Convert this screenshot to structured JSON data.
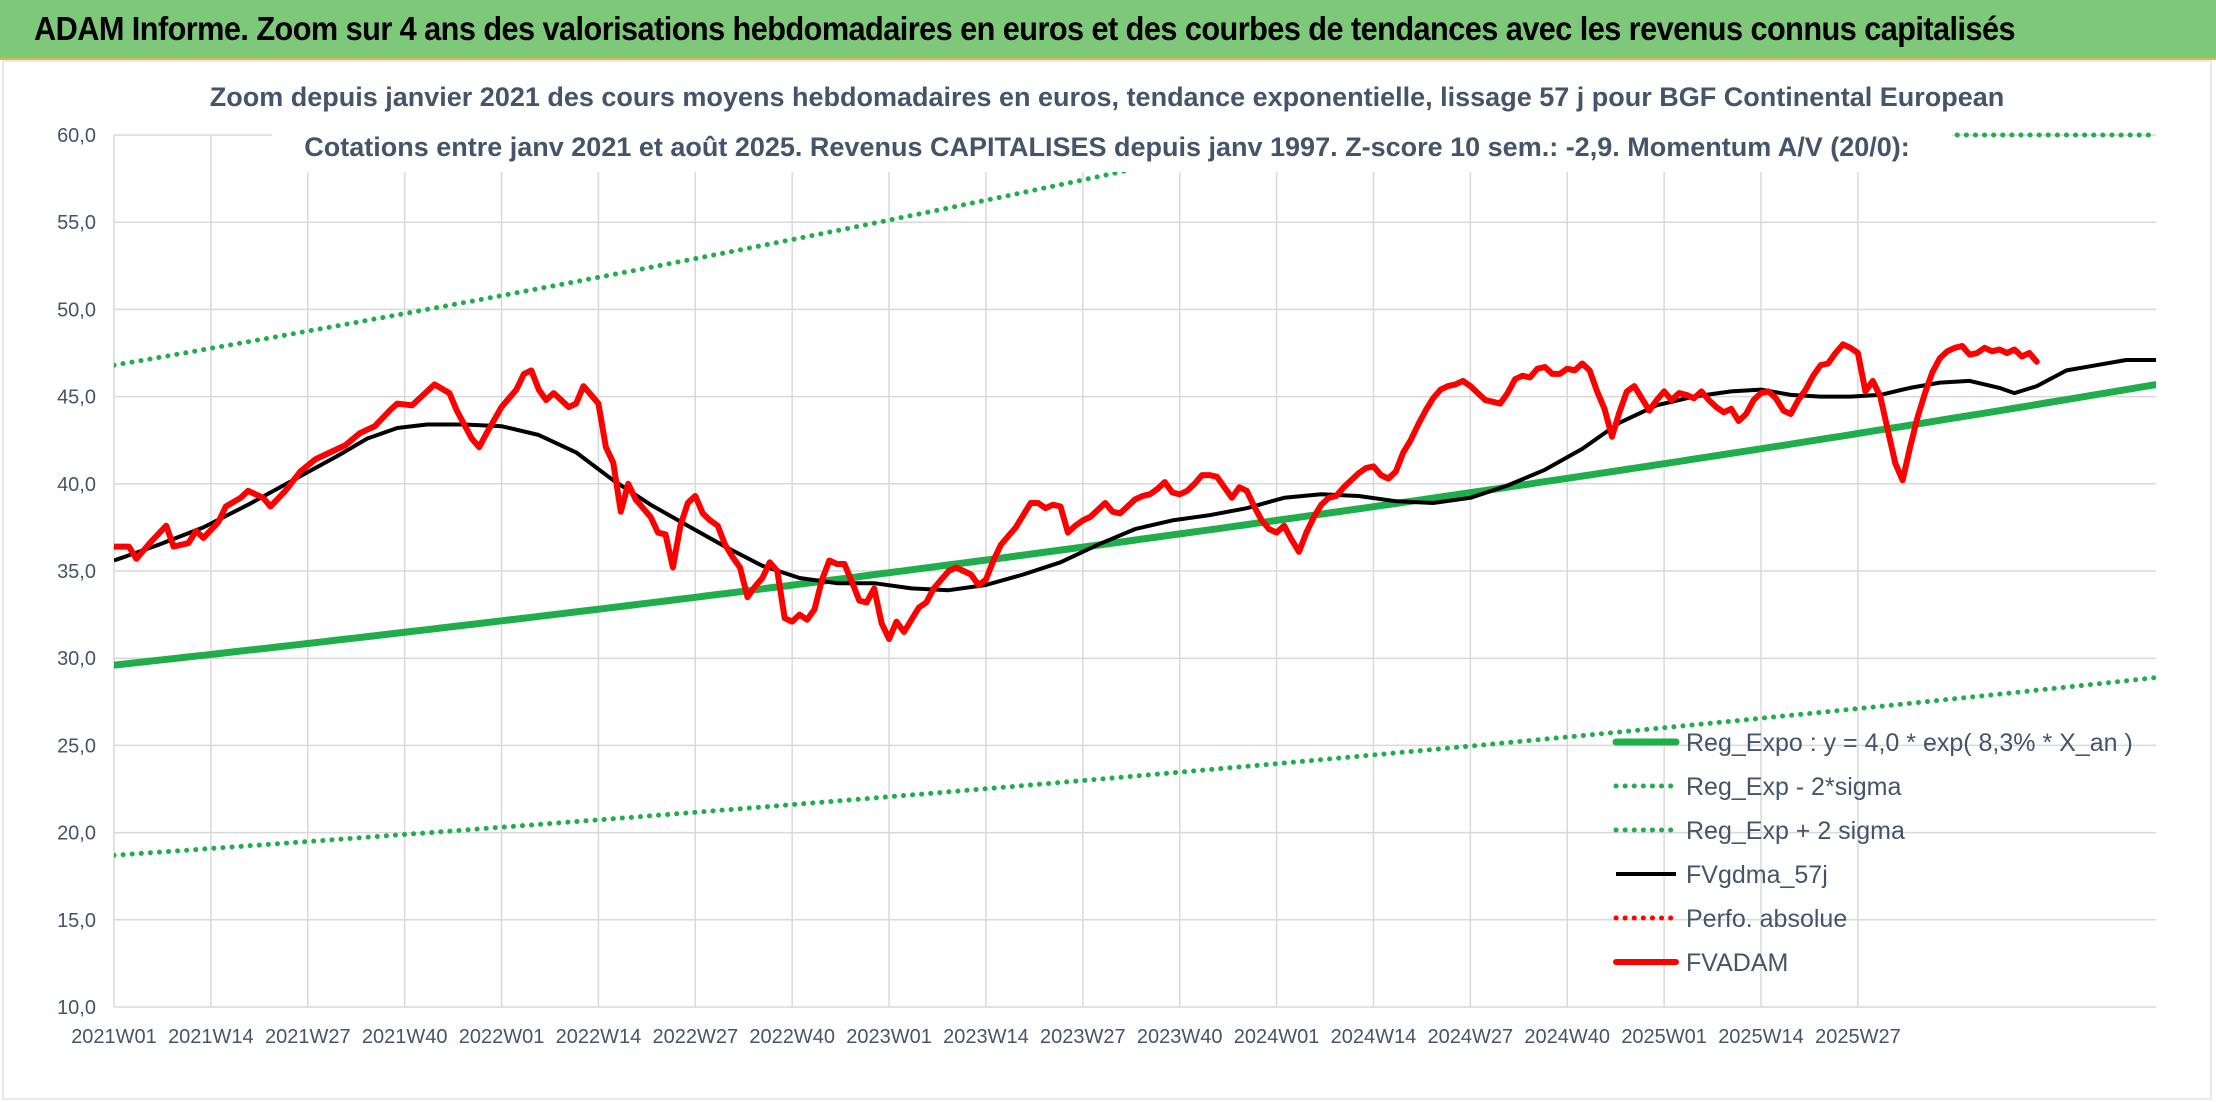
{
  "banner": {
    "text": "ADAM Informe. Zoom sur 4 ans des valorisations hebdomadaires en euros et des courbes de tendances avec les revenus connus capitalisés"
  },
  "colors": {
    "banner_bg": "#7ec87a",
    "trend_green": "#1fae4b",
    "fvgdma_black": "#000000",
    "fvadam_red": "#ff0000",
    "text": "#44546a",
    "grid": "#d9d9d9"
  },
  "chart_data": {
    "type": "line",
    "title": "Zoom depuis janvier 2021 des cours moyens hebdomadaires en euros, tendance exponentielle, lissage 57 j pour BGF Continental European",
    "subtitle": "Cotations entre janv 2021 et août 2025. Revenus CAPITALISES depuis janv 1997. Z-score 10 sem.: -2,9. Momentum A/V (20/0):",
    "ylim": [
      10,
      60
    ],
    "yticks": [
      "10,0",
      "15,0",
      "20,0",
      "25,0",
      "30,0",
      "35,0",
      "40,0",
      "45,0",
      "50,0",
      "55,0",
      "60,0"
    ],
    "x_tick_labels": [
      "2021W01",
      "2021W14",
      "2021W27",
      "2021W40",
      "2022W01",
      "2022W14",
      "2022W27",
      "2022W40",
      "2023W01",
      "2023W14",
      "2023W27",
      "2023W40",
      "2024W01",
      "2024W14",
      "2024W27",
      "2024W40",
      "2025W01",
      "2025W14",
      "2025W27"
    ],
    "grid": true,
    "legend_position": "bottom-right",
    "series": [
      {
        "name": "Reg_Expo : y = 4,0 * exp( 8,3% *  X_an )",
        "style": "solid-thick",
        "color": "#1fae4b",
        "x": [
          0,
          243
        ],
        "y": [
          29.6,
          43.5
        ],
        "curve": "exponential"
      },
      {
        "name": "Reg_Exp - 2*sigma",
        "style": "dotted",
        "color": "#1fae4b",
        "x": [
          0,
          243
        ],
        "y": [
          18.7,
          27.5
        ],
        "curve": "exponential"
      },
      {
        "name": "Reg_Exp + 2 sigma",
        "style": "dotted",
        "color": "#1fae4b",
        "x": [
          0,
          243
        ],
        "y": [
          46.8,
          68.6
        ],
        "curve": "exponential"
      },
      {
        "name": "FVgdma_57j",
        "style": "solid",
        "color": "#000000",
        "points": [
          [
            0,
            35.6
          ],
          [
            6,
            36.5
          ],
          [
            12,
            37.5
          ],
          [
            18,
            38.8
          ],
          [
            24,
            40.2
          ],
          [
            30,
            41.6
          ],
          [
            34,
            42.6
          ],
          [
            38,
            43.2
          ],
          [
            42,
            43.4
          ],
          [
            47,
            43.4
          ],
          [
            52,
            43.3
          ],
          [
            57,
            42.8
          ],
          [
            62,
            41.8
          ],
          [
            67,
            40.2
          ],
          [
            72,
            38.8
          ],
          [
            77,
            37.6
          ],
          [
            82,
            36.4
          ],
          [
            87,
            35.3
          ],
          [
            92,
            34.6
          ],
          [
            97,
            34.3
          ],
          [
            102,
            34.3
          ],
          [
            107,
            34.0
          ],
          [
            112,
            33.9
          ],
          [
            117,
            34.2
          ],
          [
            122,
            34.8
          ],
          [
            127,
            35.5
          ],
          [
            132,
            36.5
          ],
          [
            137,
            37.4
          ],
          [
            142,
            37.9
          ],
          [
            147,
            38.2
          ],
          [
            152,
            38.6
          ],
          [
            157,
            39.2
          ],
          [
            162,
            39.4
          ],
          [
            167,
            39.3
          ],
          [
            172,
            39.0
          ],
          [
            177,
            38.9
          ],
          [
            182,
            39.2
          ],
          [
            187,
            39.9
          ],
          [
            192,
            40.8
          ],
          [
            197,
            42.0
          ],
          [
            202,
            43.5
          ],
          [
            207,
            44.5
          ],
          [
            212,
            45.0
          ],
          [
            217,
            45.3
          ],
          [
            221,
            45.4
          ],
          [
            225,
            45.1
          ],
          [
            229,
            45.0
          ],
          [
            233,
            45.0
          ],
          [
            237,
            45.1
          ],
          [
            241,
            45.5
          ],
          [
            245,
            45.8
          ],
          [
            249,
            45.9
          ],
          [
            253,
            45.5
          ],
          [
            255,
            45.2
          ],
          [
            258,
            45.6
          ],
          [
            262,
            46.5
          ],
          [
            266,
            46.8
          ],
          [
            270,
            47.1
          ],
          [
            274,
            47.1
          ]
        ]
      },
      {
        "name": "Perfo. absolue",
        "style": "dotted",
        "color": "#ff0000",
        "points": []
      },
      {
        "name": "FVADAM",
        "style": "solid-thick",
        "color": "#ff0000",
        "points": [
          [
            0,
            36.4
          ],
          [
            2,
            36.4
          ],
          [
            3,
            35.7
          ],
          [
            5,
            36.7
          ],
          [
            7,
            37.6
          ],
          [
            8,
            36.4
          ],
          [
            10,
            36.6
          ],
          [
            11,
            37.3
          ],
          [
            12,
            36.9
          ],
          [
            14,
            37.8
          ],
          [
            15,
            38.7
          ],
          [
            17,
            39.2
          ],
          [
            18,
            39.6
          ],
          [
            20,
            39.2
          ],
          [
            21,
            38.7
          ],
          [
            23,
            39.6
          ],
          [
            25,
            40.7
          ],
          [
            27,
            41.4
          ],
          [
            29,
            41.8
          ],
          [
            31,
            42.2
          ],
          [
            33,
            42.9
          ],
          [
            35,
            43.3
          ],
          [
            37,
            44.2
          ],
          [
            38,
            44.6
          ],
          [
            40,
            44.5
          ],
          [
            42,
            45.3
          ],
          [
            43,
            45.7
          ],
          [
            45,
            45.2
          ],
          [
            46,
            44.2
          ],
          [
            48,
            42.6
          ],
          [
            49,
            42.1
          ],
          [
            50,
            42.9
          ],
          [
            52,
            44.4
          ],
          [
            54,
            45.4
          ],
          [
            55,
            46.3
          ],
          [
            56,
            46.5
          ],
          [
            57,
            45.4
          ],
          [
            58,
            44.8
          ],
          [
            59,
            45.2
          ],
          [
            61,
            44.4
          ],
          [
            62,
            44.6
          ],
          [
            63,
            45.6
          ],
          [
            65,
            44.6
          ],
          [
            66,
            42.1
          ],
          [
            67,
            41.2
          ],
          [
            68,
            38.4
          ],
          [
            69,
            40.0
          ],
          [
            70,
            39.1
          ],
          [
            72,
            38.1
          ],
          [
            73,
            37.2
          ],
          [
            74,
            37.1
          ],
          [
            75,
            35.2
          ],
          [
            76,
            37.6
          ],
          [
            77,
            38.9
          ],
          [
            78,
            39.3
          ],
          [
            79,
            38.3
          ],
          [
            80,
            37.9
          ],
          [
            81,
            37.6
          ],
          [
            82,
            36.5
          ],
          [
            83,
            35.8
          ],
          [
            84,
            35.2
          ],
          [
            85,
            33.5
          ],
          [
            86,
            34.1
          ],
          [
            87,
            34.6
          ],
          [
            88,
            35.5
          ],
          [
            89,
            35.0
          ],
          [
            90,
            32.3
          ],
          [
            91,
            32.1
          ],
          [
            92,
            32.5
          ],
          [
            93,
            32.2
          ],
          [
            94,
            32.8
          ],
          [
            95,
            34.5
          ],
          [
            96,
            35.6
          ],
          [
            97,
            35.4
          ],
          [
            98,
            35.4
          ],
          [
            99,
            34.4
          ],
          [
            100,
            33.3
          ],
          [
            101,
            33.2
          ],
          [
            102,
            34.0
          ],
          [
            103,
            32.0
          ],
          [
            104,
            31.1
          ],
          [
            105,
            32.1
          ],
          [
            106,
            31.5
          ],
          [
            107,
            32.2
          ],
          [
            108,
            32.9
          ],
          [
            109,
            33.2
          ],
          [
            110,
            34.0
          ],
          [
            111,
            34.5
          ],
          [
            112,
            35.0
          ],
          [
            113,
            35.2
          ],
          [
            114,
            35.0
          ],
          [
            115,
            34.8
          ],
          [
            116,
            34.2
          ],
          [
            117,
            34.5
          ],
          [
            118,
            35.6
          ],
          [
            119,
            36.5
          ],
          [
            120,
            37.0
          ],
          [
            121,
            37.5
          ],
          [
            122,
            38.2
          ],
          [
            123,
            38.9
          ],
          [
            124,
            38.9
          ],
          [
            125,
            38.6
          ],
          [
            126,
            38.8
          ],
          [
            127,
            38.7
          ],
          [
            128,
            37.2
          ],
          [
            129,
            37.6
          ],
          [
            130,
            37.9
          ],
          [
            131,
            38.1
          ],
          [
            132,
            38.5
          ],
          [
            133,
            38.9
          ],
          [
            134,
            38.4
          ],
          [
            135,
            38.3
          ],
          [
            136,
            38.7
          ],
          [
            137,
            39.1
          ],
          [
            138,
            39.3
          ],
          [
            139,
            39.4
          ],
          [
            140,
            39.7
          ],
          [
            141,
            40.1
          ],
          [
            142,
            39.5
          ],
          [
            143,
            39.4
          ],
          [
            144,
            39.6
          ],
          [
            145,
            40.0
          ],
          [
            146,
            40.5
          ],
          [
            147,
            40.5
          ],
          [
            148,
            40.4
          ],
          [
            149,
            39.8
          ],
          [
            150,
            39.2
          ],
          [
            151,
            39.8
          ],
          [
            152,
            39.6
          ],
          [
            153,
            38.7
          ],
          [
            154,
            37.9
          ],
          [
            155,
            37.4
          ],
          [
            156,
            37.2
          ],
          [
            157,
            37.6
          ],
          [
            158,
            36.8
          ],
          [
            159,
            36.1
          ],
          [
            160,
            37.2
          ],
          [
            161,
            38.1
          ],
          [
            162,
            38.8
          ],
          [
            163,
            39.2
          ],
          [
            164,
            39.3
          ],
          [
            165,
            39.8
          ],
          [
            166,
            40.2
          ],
          [
            167,
            40.6
          ],
          [
            168,
            40.9
          ],
          [
            169,
            41.0
          ],
          [
            170,
            40.5
          ],
          [
            171,
            40.3
          ],
          [
            172,
            40.7
          ],
          [
            173,
            41.8
          ],
          [
            174,
            42.5
          ],
          [
            175,
            43.4
          ],
          [
            176,
            44.2
          ],
          [
            177,
            44.9
          ],
          [
            178,
            45.4
          ],
          [
            179,
            45.6
          ],
          [
            180,
            45.7
          ],
          [
            181,
            45.9
          ],
          [
            182,
            45.6
          ],
          [
            183,
            45.2
          ],
          [
            184,
            44.8
          ],
          [
            185,
            44.7
          ],
          [
            186,
            44.6
          ],
          [
            187,
            45.2
          ],
          [
            188,
            46.0
          ],
          [
            189,
            46.2
          ],
          [
            190,
            46.1
          ],
          [
            191,
            46.6
          ],
          [
            192,
            46.7
          ],
          [
            193,
            46.3
          ],
          [
            194,
            46.3
          ],
          [
            195,
            46.6
          ],
          [
            196,
            46.5
          ],
          [
            197,
            46.9
          ],
          [
            198,
            46.5
          ],
          [
            199,
            45.3
          ],
          [
            200,
            44.3
          ],
          [
            201,
            42.7
          ],
          [
            202,
            44.1
          ],
          [
            203,
            45.3
          ],
          [
            204,
            45.6
          ],
          [
            205,
            44.9
          ],
          [
            206,
            44.2
          ],
          [
            207,
            44.8
          ],
          [
            208,
            45.3
          ],
          [
            209,
            44.8
          ],
          [
            210,
            45.2
          ],
          [
            211,
            45.1
          ],
          [
            212,
            44.9
          ],
          [
            213,
            45.3
          ],
          [
            214,
            44.8
          ],
          [
            215,
            44.4
          ],
          [
            216,
            44.1
          ],
          [
            217,
            44.3
          ],
          [
            218,
            43.6
          ],
          [
            219,
            44.0
          ],
          [
            220,
            44.8
          ],
          [
            221,
            45.2
          ],
          [
            222,
            45.3
          ],
          [
            223,
            44.9
          ],
          [
            224,
            44.2
          ],
          [
            225,
            44.0
          ],
          [
            226,
            44.8
          ],
          [
            227,
            45.4
          ],
          [
            228,
            46.2
          ],
          [
            229,
            46.8
          ],
          [
            230,
            46.9
          ],
          [
            231,
            47.5
          ],
          [
            232,
            48.0
          ],
          [
            233,
            47.8
          ],
          [
            234,
            47.5
          ],
          [
            235,
            45.3
          ],
          [
            236,
            45.9
          ],
          [
            237,
            45.0
          ],
          [
            238,
            43.1
          ],
          [
            239,
            41.2
          ],
          [
            240,
            40.2
          ],
          [
            241,
            42.1
          ],
          [
            242,
            43.8
          ],
          [
            243,
            45.2
          ],
          [
            244,
            46.4
          ],
          [
            245,
            47.2
          ],
          [
            246,
            47.6
          ],
          [
            247,
            47.8
          ],
          [
            248,
            47.9
          ],
          [
            249,
            47.4
          ],
          [
            250,
            47.5
          ],
          [
            251,
            47.8
          ],
          [
            252,
            47.6
          ],
          [
            253,
            47.7
          ],
          [
            254,
            47.5
          ],
          [
            255,
            47.7
          ],
          [
            256,
            47.3
          ],
          [
            257,
            47.5
          ],
          [
            258,
            47.0
          ]
        ]
      }
    ]
  }
}
